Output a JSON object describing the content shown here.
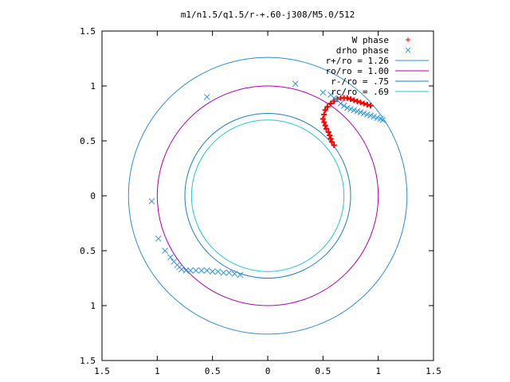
{
  "chart_data": {
    "type": "scatter",
    "title": "m1/n1.5/q1.5/r-+.60-j308/M5.0/512",
    "xlabel": "",
    "ylabel": "",
    "xlim": [
      -1.5,
      1.5
    ],
    "ylim": [
      -1.5,
      1.5
    ],
    "grid": false,
    "legend_position": "top-right",
    "x_tick_labels": [
      "1.5",
      "1",
      "0.5",
      "0",
      "0.5",
      "1",
      "1.5"
    ],
    "y_tick_labels": [
      "1.5",
      "1",
      "0.5",
      "0",
      "0.5",
      "1",
      "1.5"
    ],
    "tick_values": [
      -1.5,
      -1,
      -0.5,
      0,
      0.5,
      1,
      1.5
    ],
    "series": [
      {
        "name": "W phase",
        "marker": "+",
        "color": "#ff0000",
        "points": [
          [
            0.93,
            0.82
          ],
          [
            0.9,
            0.83
          ],
          [
            0.87,
            0.84
          ],
          [
            0.84,
            0.85
          ],
          [
            0.81,
            0.86
          ],
          [
            0.78,
            0.87
          ],
          [
            0.75,
            0.88
          ],
          [
            0.72,
            0.89
          ],
          [
            0.69,
            0.89
          ],
          [
            0.66,
            0.89
          ],
          [
            0.63,
            0.88
          ],
          [
            0.6,
            0.86
          ],
          [
            0.57,
            0.84
          ],
          [
            0.54,
            0.81
          ],
          [
            0.52,
            0.78
          ],
          [
            0.51,
            0.74
          ],
          [
            0.5,
            0.7
          ],
          [
            0.51,
            0.67
          ],
          [
            0.52,
            0.64
          ],
          [
            0.53,
            0.61
          ],
          [
            0.55,
            0.58
          ],
          [
            0.56,
            0.55
          ],
          [
            0.57,
            0.52
          ],
          [
            0.58,
            0.49
          ],
          [
            0.6,
            0.46
          ]
        ]
      },
      {
        "name": "drho phase",
        "marker": "x",
        "color": "#3399dd",
        "points": [
          [
            0.25,
            1.02
          ],
          [
            -0.55,
            0.9
          ],
          [
            -1.05,
            -0.05
          ],
          [
            -0.99,
            -0.39
          ],
          [
            -0.93,
            -0.5
          ],
          [
            -0.88,
            -0.56
          ],
          [
            -0.85,
            -0.6
          ],
          [
            -0.82,
            -0.63
          ],
          [
            -0.8,
            -0.65
          ],
          [
            -0.78,
            -0.67
          ],
          [
            -0.74,
            -0.68
          ],
          [
            -0.7,
            -0.68
          ],
          [
            -0.65,
            -0.68
          ],
          [
            -0.6,
            -0.68
          ],
          [
            -0.55,
            -0.68
          ],
          [
            -0.5,
            -0.69
          ],
          [
            -0.45,
            -0.69
          ],
          [
            -0.4,
            -0.7
          ],
          [
            -0.35,
            -0.7
          ],
          [
            -0.3,
            -0.71
          ],
          [
            -0.25,
            -0.72
          ],
          [
            0.5,
            0.94
          ],
          [
            0.57,
            0.92
          ],
          [
            0.6,
            0.89
          ],
          [
            0.63,
            0.87
          ],
          [
            0.66,
            0.84
          ],
          [
            0.69,
            0.82
          ],
          [
            0.72,
            0.8
          ],
          [
            0.75,
            0.79
          ],
          [
            0.78,
            0.78
          ],
          [
            0.81,
            0.77
          ],
          [
            0.84,
            0.76
          ],
          [
            0.87,
            0.75
          ],
          [
            0.9,
            0.74
          ],
          [
            0.93,
            0.73
          ],
          [
            0.96,
            0.72
          ],
          [
            0.99,
            0.71
          ],
          [
            1.02,
            0.7
          ],
          [
            1.04,
            0.69
          ]
        ]
      }
    ],
    "circles": [
      {
        "name": "r+/ro = 1.26",
        "radius": 1.26,
        "color": "#2f8fd0"
      },
      {
        "name": "ro/ro = 1.00",
        "radius": 1.0,
        "color": "#b000b0"
      },
      {
        "name": "r-/ro = .75",
        "radius": 0.75,
        "color": "#2080c0"
      },
      {
        "name": "rc/ro = .69",
        "radius": 0.69,
        "color": "#20c8d0"
      }
    ]
  }
}
